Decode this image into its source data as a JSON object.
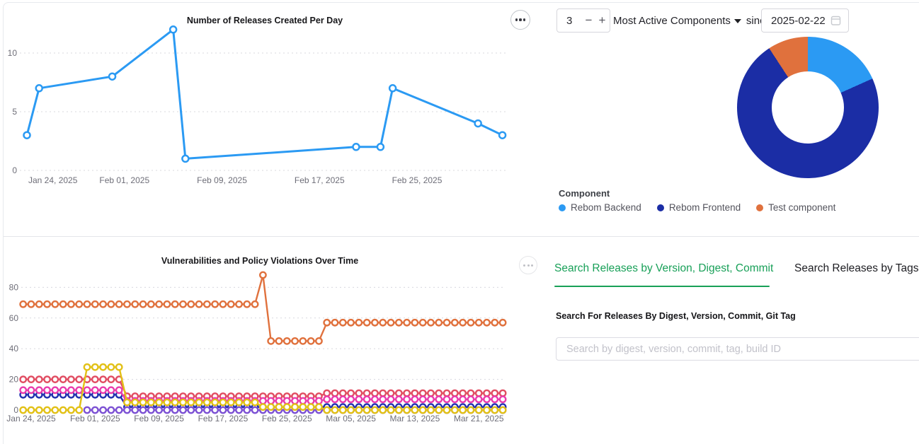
{
  "chart_data": [
    {
      "id": "releases",
      "type": "line",
      "title": "Number of Releases Created Per Day",
      "color": "#2B9AF3",
      "x": [
        "Jan 24, 2025",
        "Jan 25, 2025",
        "Jan 31, 2025",
        "Feb 05, 2025",
        "Feb 06, 2025",
        "Feb 20, 2025",
        "Feb 22, 2025",
        "Feb 23, 2025",
        "Mar 02, 2025",
        "Mar 04, 2025"
      ],
      "day_offsets": [
        0,
        1,
        7,
        12,
        13,
        27,
        29,
        30,
        37,
        39
      ],
      "values": [
        3,
        7,
        8,
        12,
        1,
        2,
        2,
        7,
        4,
        3
      ],
      "x_tick_labels": [
        "Jan 24, 2025",
        "Feb 01, 2025",
        "Feb 09, 2025",
        "Feb 17, 2025",
        "Feb 25, 2025"
      ],
      "x_tick_days": [
        0,
        8,
        16,
        24,
        32
      ],
      "y_ticks": [
        0,
        5,
        10
      ],
      "ylim": [
        0,
        12.6
      ],
      "grid": "dotted horizontal"
    },
    {
      "id": "vulnerabilities",
      "type": "line",
      "title": "Vulnerabilities and Policy Violations Over Time",
      "start_date": "Jan 23, 2025",
      "end_date": "Mar 24, 2025",
      "x_tick_labels": [
        "Jan 24, 2025",
        "Feb 01, 2025",
        "Feb 09, 2025",
        "Feb 17, 2025",
        "Feb 25, 2025",
        "Mar 05, 2025",
        "Mar 13, 2025",
        "Mar 21, 2025"
      ],
      "x_tick_days": [
        1,
        9,
        17,
        25,
        33,
        41,
        49,
        57
      ],
      "y_ticks": [
        0,
        20,
        40,
        60,
        80
      ],
      "ylim": [
        0,
        95
      ],
      "grid": "dotted horizontal",
      "series_note": "segments are [startDayIndex, endDayIndex, value] with daily points from Jan 23 2025",
      "series": [
        {
          "name": "series-orange",
          "color": "#E0713D",
          "segments": [
            [
              0,
              29,
              69
            ],
            [
              30,
              30,
              88
            ],
            [
              31,
              37,
              45
            ],
            [
              38,
              60,
              57
            ]
          ]
        },
        {
          "name": "series-navy",
          "color": "#2231AF",
          "segments": [
            [
              0,
              12,
              10
            ],
            [
              13,
              60,
              2
            ]
          ]
        },
        {
          "name": "series-crimson",
          "color": "#E14D62",
          "segments": [
            [
              0,
              12,
              20
            ],
            [
              13,
              37,
              9
            ],
            [
              38,
              60,
              11
            ]
          ]
        },
        {
          "name": "series-magenta",
          "color": "#E93CAD",
          "segments": [
            [
              0,
              12,
              13
            ],
            [
              13,
              37,
              6
            ],
            [
              38,
              60,
              7
            ]
          ]
        },
        {
          "name": "series-purple",
          "color": "#7D52D4",
          "segments": [
            [
              8,
              60,
              0
            ]
          ]
        },
        {
          "name": "series-yellow",
          "color": "#E2C117",
          "segments": [
            [
              0,
              7,
              0
            ],
            [
              8,
              12,
              28
            ],
            [
              13,
              29,
              5
            ],
            [
              30,
              37,
              2
            ],
            [
              38,
              60,
              0
            ]
          ]
        }
      ]
    }
  ],
  "controls": {
    "count": "3",
    "minus": "−",
    "plus": "+",
    "dropdown": "Most Active Components",
    "since": "since",
    "date": "2025-02-22"
  },
  "donut": {
    "legend_title": "Component",
    "slices": [
      {
        "label": "Rebom Backend",
        "color": "#2B9AF3",
        "pct": 18.3
      },
      {
        "label": "Rebom Frontend",
        "color": "#1B2DA5",
        "pct": 72.5
      },
      {
        "label": "Test component",
        "color": "#E0713D",
        "pct": 9.2
      }
    ]
  },
  "search_panel": {
    "tab_primary": "Search Releases by Version, Digest, Commit",
    "tab_secondary": "Search Releases by Tags",
    "heading": "Search For Releases By Digest, Version, Commit, Git Tag",
    "placeholder": "Search by digest, version, commit, tag, build ID",
    "accent_green": "#18A058"
  }
}
